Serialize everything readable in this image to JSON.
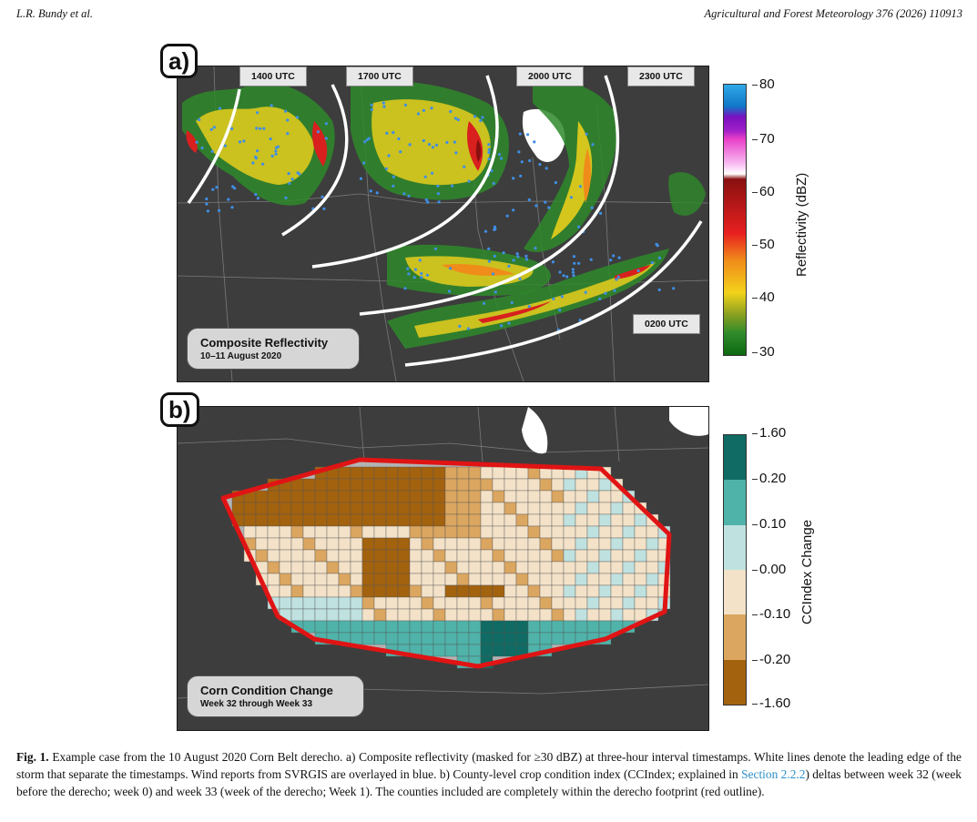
{
  "header": {
    "authors": "L.R. Bundy et al.",
    "journal": "Agricultural and Forest Meteorology 376 (2026) 110913"
  },
  "panel_a": {
    "label": "a)",
    "timestamps": [
      "1400 UTC",
      "1700 UTC",
      "2000 UTC",
      "2300 UTC",
      "0200 UTC"
    ],
    "legend_title": "Composite Reflectivity",
    "legend_subtitle": "10–11 August 2020",
    "colorbar_title": "Reflectivity (dBZ)",
    "colorbar_ticks": [
      "80",
      "70",
      "60",
      "50",
      "40",
      "30"
    ],
    "colors": {
      "radar_green": "#2e8a2a",
      "radar_yellow": "#f2d21b",
      "radar_orange": "#f08c1a",
      "radar_red": "#d8201e",
      "radar_darkred": "#8a1010",
      "radar_magenta": "#e83ec8",
      "report_blue": "#3f8fe6"
    }
  },
  "panel_b": {
    "label": "b)",
    "legend_title": "Corn Condition Change",
    "legend_subtitle": "Week 32 through Week 33",
    "colorbar_title": "CCIndex Change",
    "colorbar_ticks": [
      "1.60",
      "0.20",
      "0.10",
      "0.00",
      "-0.10",
      "-0.20",
      "-1.60"
    ],
    "colorbar_colors": [
      "#0f6b63",
      "#4fb3aa",
      "#bfe2e0",
      "#f3e2c8",
      "#dba660",
      "#a3620e"
    ],
    "outline_color": "#e01414"
  },
  "caption": {
    "fig": "Fig. 1.",
    "text1": " Example case from the 10 August 2020 Corn Belt derecho. a) Composite reflectivity (masked for ≥30 dBZ) at three-hour interval timestamps. White lines denote the leading edge of the storm that separate the timestamps. Wind reports from SVRGIS are overlayed in blue. b) County-level crop condition index (CCIndex; explained in ",
    "link": "Section 2.2.2",
    "text2": ") deltas between week 32 (week before the derecho; week 0) and week 33 (week of the derecho; Week 1). The counties included are completely within the derecho footprint (red outline)."
  }
}
